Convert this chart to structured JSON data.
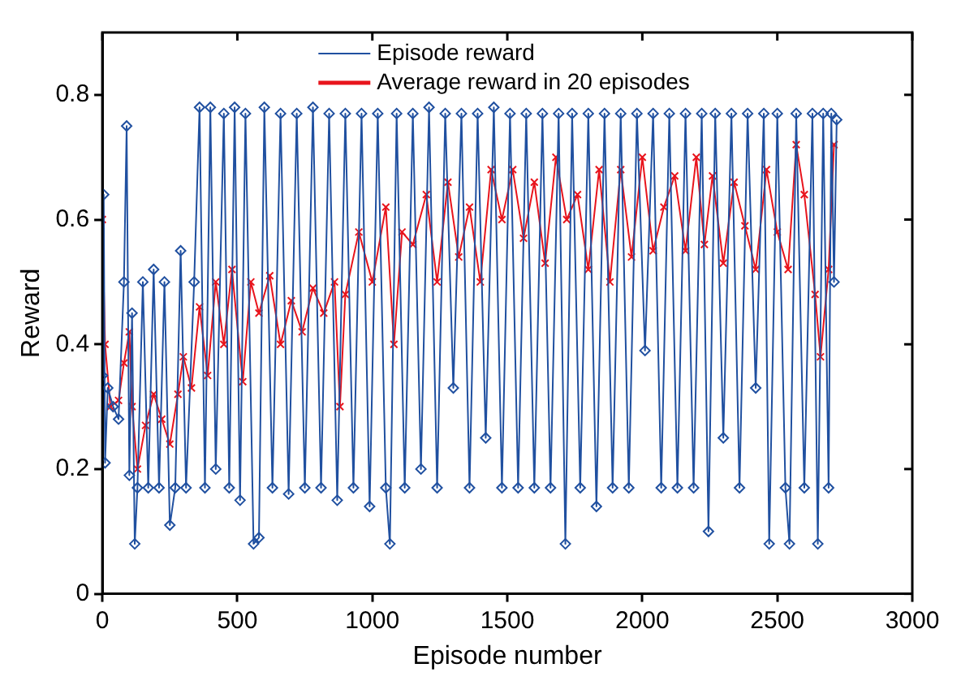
{
  "chart_data": {
    "type": "line",
    "xlabel": "Episode number",
    "ylabel": "Reward",
    "xlim": [
      0,
      3000
    ],
    "xticks": [
      0,
      500,
      1000,
      1500,
      2000,
      2500,
      3000
    ],
    "ylim": [
      0,
      0.9
    ],
    "yticks": [
      0,
      0.2,
      0.4,
      0.6,
      0.8
    ],
    "grid": false,
    "legend": "top",
    "line_style": "solid",
    "series": [
      {
        "name": "Episode reward",
        "color": "#2050a0",
        "marker": "diamond",
        "x": [
          0,
          5,
          10,
          20,
          40,
          60,
          80,
          90,
          100,
          110,
          120,
          130,
          150,
          170,
          190,
          210,
          230,
          250,
          270,
          290,
          310,
          340,
          360,
          380,
          400,
          420,
          450,
          470,
          490,
          510,
          530,
          560,
          580,
          600,
          630,
          660,
          690,
          720,
          750,
          780,
          810,
          840,
          870,
          900,
          930,
          960,
          990,
          1020,
          1050,
          1065,
          1090,
          1120,
          1150,
          1180,
          1210,
          1240,
          1270,
          1300,
          1330,
          1360,
          1390,
          1420,
          1450,
          1480,
          1510,
          1540,
          1570,
          1600,
          1630,
          1660,
          1690,
          1715,
          1740,
          1770,
          1800,
          1830,
          1860,
          1890,
          1920,
          1950,
          1980,
          2010,
          2040,
          2070,
          2100,
          2130,
          2160,
          2190,
          2220,
          2245,
          2270,
          2300,
          2330,
          2360,
          2390,
          2420,
          2450,
          2470,
          2500,
          2530,
          2545,
          2570,
          2600,
          2630,
          2650,
          2670,
          2690,
          2700,
          2710,
          2720
        ],
        "values": [
          0.35,
          0.64,
          0.21,
          0.33,
          0.3,
          0.28,
          0.5,
          0.75,
          0.19,
          0.45,
          0.08,
          0.17,
          0.5,
          0.17,
          0.52,
          0.17,
          0.5,
          0.11,
          0.17,
          0.55,
          0.17,
          0.5,
          0.78,
          0.17,
          0.78,
          0.2,
          0.77,
          0.17,
          0.78,
          0.15,
          0.77,
          0.08,
          0.09,
          0.78,
          0.17,
          0.77,
          0.16,
          0.77,
          0.17,
          0.78,
          0.17,
          0.77,
          0.15,
          0.77,
          0.17,
          0.77,
          0.14,
          0.77,
          0.17,
          0.08,
          0.77,
          0.17,
          0.77,
          0.2,
          0.78,
          0.17,
          0.77,
          0.33,
          0.77,
          0.17,
          0.77,
          0.25,
          0.78,
          0.17,
          0.77,
          0.17,
          0.77,
          0.17,
          0.77,
          0.17,
          0.77,
          0.08,
          0.77,
          0.17,
          0.77,
          0.14,
          0.77,
          0.17,
          0.77,
          0.17,
          0.77,
          0.39,
          0.77,
          0.17,
          0.77,
          0.17,
          0.77,
          0.17,
          0.77,
          0.1,
          0.77,
          0.25,
          0.77,
          0.17,
          0.77,
          0.33,
          0.77,
          0.08,
          0.77,
          0.17,
          0.08,
          0.77,
          0.17,
          0.77,
          0.08,
          0.77,
          0.17,
          0.77,
          0.5,
          0.76
        ]
      },
      {
        "name": "Average reward in 20 episodes",
        "color": "#e8141c",
        "marker": "cross",
        "x": [
          0,
          10,
          30,
          60,
          80,
          100,
          110,
          130,
          160,
          190,
          220,
          250,
          280,
          300,
          330,
          360,
          390,
          420,
          450,
          480,
          520,
          550,
          580,
          620,
          660,
          700,
          740,
          780,
          820,
          860,
          880,
          900,
          950,
          1000,
          1050,
          1080,
          1110,
          1150,
          1200,
          1240,
          1280,
          1320,
          1360,
          1400,
          1440,
          1480,
          1520,
          1560,
          1600,
          1640,
          1680,
          1720,
          1760,
          1800,
          1840,
          1880,
          1920,
          1960,
          2000,
          2040,
          2080,
          2120,
          2160,
          2200,
          2230,
          2260,
          2300,
          2340,
          2380,
          2420,
          2460,
          2500,
          2540,
          2570,
          2600,
          2640,
          2660,
          2690,
          2710
        ],
        "values": [
          0.6,
          0.4,
          0.3,
          0.31,
          0.37,
          0.42,
          0.3,
          0.2,
          0.27,
          0.32,
          0.28,
          0.24,
          0.32,
          0.38,
          0.33,
          0.46,
          0.35,
          0.5,
          0.4,
          0.52,
          0.34,
          0.5,
          0.45,
          0.51,
          0.4,
          0.47,
          0.42,
          0.49,
          0.45,
          0.5,
          0.3,
          0.48,
          0.58,
          0.5,
          0.62,
          0.4,
          0.58,
          0.56,
          0.64,
          0.5,
          0.66,
          0.54,
          0.62,
          0.5,
          0.68,
          0.6,
          0.68,
          0.57,
          0.66,
          0.53,
          0.7,
          0.6,
          0.64,
          0.52,
          0.68,
          0.5,
          0.68,
          0.54,
          0.7,
          0.55,
          0.62,
          0.67,
          0.55,
          0.7,
          0.56,
          0.67,
          0.53,
          0.66,
          0.59,
          0.52,
          0.68,
          0.58,
          0.52,
          0.72,
          0.64,
          0.48,
          0.38,
          0.52,
          0.72
        ]
      }
    ]
  }
}
